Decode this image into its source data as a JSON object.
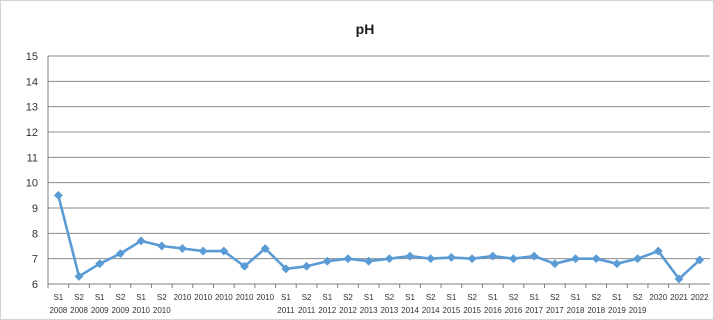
{
  "chart_data": {
    "type": "line",
    "title": "pH",
    "xlabel": "",
    "ylabel": "",
    "ylim": [
      6,
      15
    ],
    "yticks": [
      6,
      7,
      8,
      9,
      10,
      11,
      12,
      13,
      14,
      15
    ],
    "grid": true,
    "legend": "none",
    "colors": {
      "line": "#5b9bd5",
      "grid": "#8c8c8c",
      "axis": "#7f7f7f"
    },
    "categories": [
      {
        "top": "S1",
        "bottom": "2008"
      },
      {
        "top": "S2",
        "bottom": "2008"
      },
      {
        "top": "S1",
        "bottom": "2009"
      },
      {
        "top": "S2",
        "bottom": "2009"
      },
      {
        "top": "S1",
        "bottom": "2010"
      },
      {
        "top": "S2",
        "bottom": "2010"
      },
      {
        "top": "2010",
        "bottom": ""
      },
      {
        "top": "2010",
        "bottom": ""
      },
      {
        "top": "2010",
        "bottom": ""
      },
      {
        "top": "2010",
        "bottom": ""
      },
      {
        "top": "2010",
        "bottom": ""
      },
      {
        "top": "S1",
        "bottom": "2011"
      },
      {
        "top": "S2",
        "bottom": "2011"
      },
      {
        "top": "S1",
        "bottom": "2012"
      },
      {
        "top": "S2",
        "bottom": "2012"
      },
      {
        "top": "S1",
        "bottom": "2013"
      },
      {
        "top": "S2",
        "bottom": "2013"
      },
      {
        "top": "S1",
        "bottom": "2014"
      },
      {
        "top": "S2",
        "bottom": "2014"
      },
      {
        "top": "S1",
        "bottom": "2015"
      },
      {
        "top": "S2",
        "bottom": "2015"
      },
      {
        "top": "S1",
        "bottom": "2016"
      },
      {
        "top": "S2",
        "bottom": "2016"
      },
      {
        "top": "S1",
        "bottom": "2017"
      },
      {
        "top": "S2",
        "bottom": "2017"
      },
      {
        "top": "S1",
        "bottom": "2018"
      },
      {
        "top": "S2",
        "bottom": "2018"
      },
      {
        "top": "S1",
        "bottom": "2019"
      },
      {
        "top": "S2",
        "bottom": "2019"
      },
      {
        "top": "2020",
        "bottom": ""
      },
      {
        "top": "2021",
        "bottom": ""
      },
      {
        "top": "2022",
        "bottom": ""
      }
    ],
    "series": [
      {
        "values": [
          9.5,
          6.3,
          6.8,
          7.2,
          7.7,
          7.5,
          7.4,
          7.3,
          7.3,
          6.7,
          7.4,
          6.6,
          6.7,
          6.9,
          7.0,
          6.9,
          7.0,
          7.1,
          7.0,
          7.05,
          7.0,
          7.1,
          7.0,
          7.1,
          6.8,
          7.0,
          7.0,
          6.8,
          7.0,
          7.3,
          6.2,
          6.95
        ]
      }
    ]
  }
}
